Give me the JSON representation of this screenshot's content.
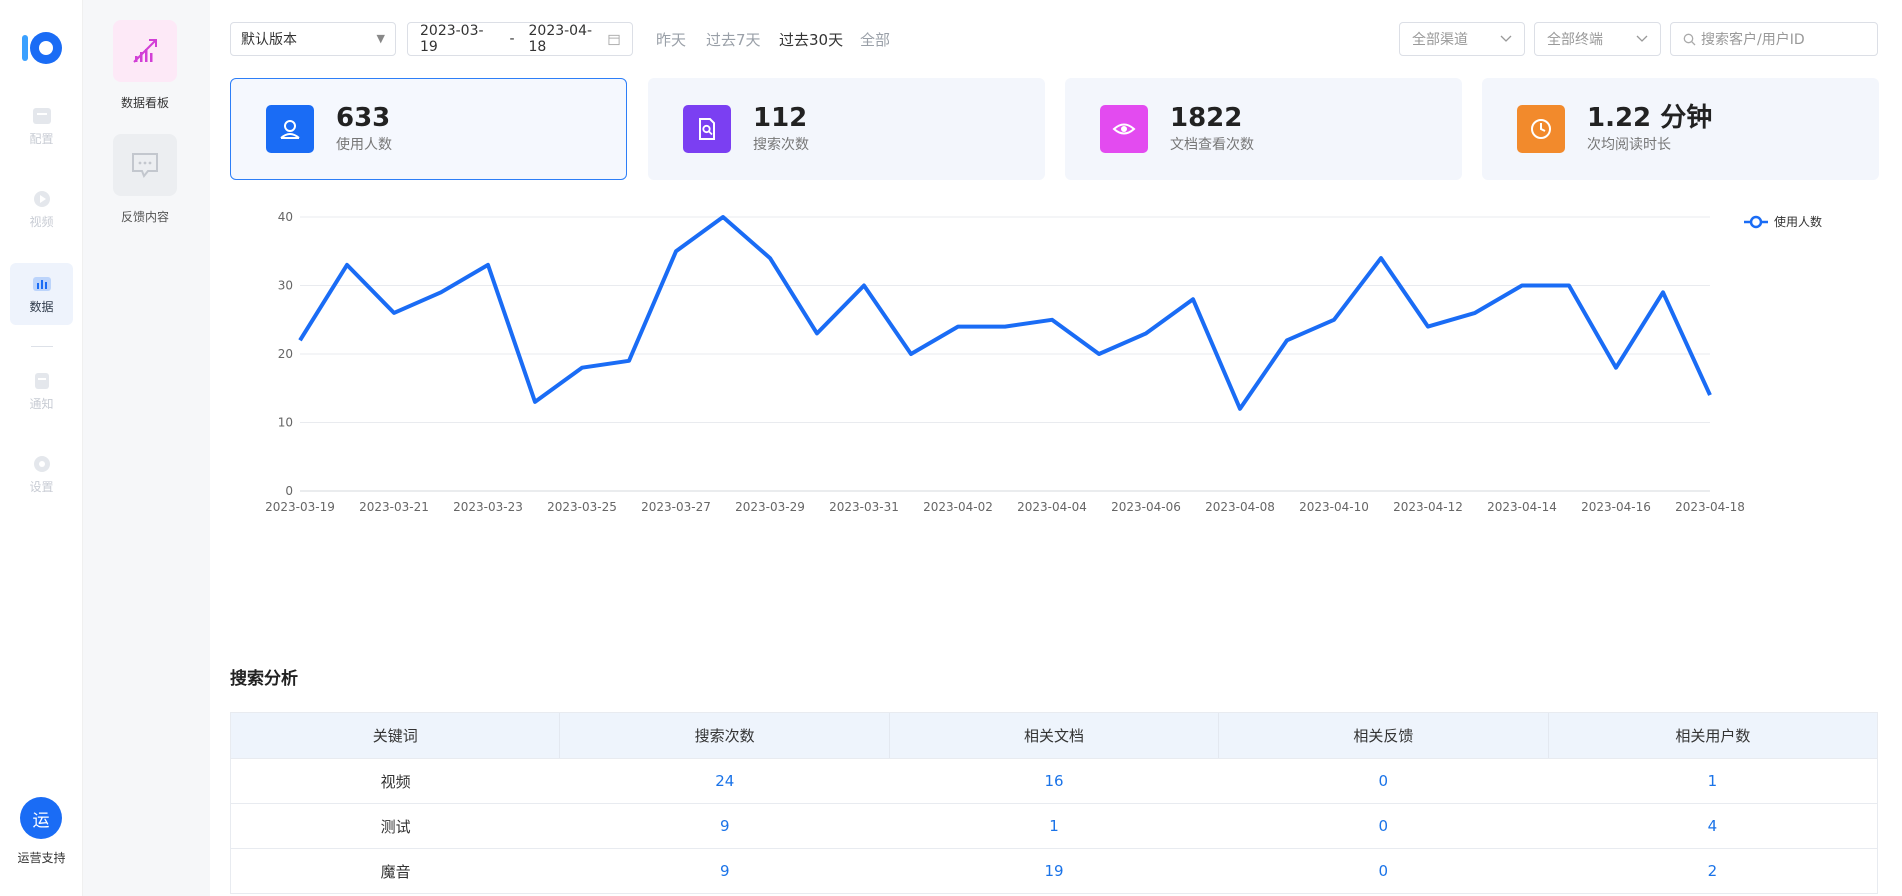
{
  "rail": {
    "items": [
      {
        "label": "配置",
        "icon": "config-icon"
      },
      {
        "label": "视频",
        "icon": "video-icon"
      },
      {
        "label": "数据",
        "icon": "data-icon"
      },
      {
        "label": "通知",
        "icon": "notice-icon"
      },
      {
        "label": "设置",
        "icon": "settings-icon"
      }
    ],
    "support_badge": "运",
    "support_label": "运营支持"
  },
  "subnav": {
    "items": [
      {
        "label": "数据看板",
        "icon": "dashboard-chart-icon"
      },
      {
        "label": "反馈内容",
        "icon": "feedback-icon"
      }
    ]
  },
  "filters": {
    "version": "默认版本",
    "date_start": "2023-03-19",
    "date_sep": "-",
    "date_end": "2023-04-18",
    "quick": [
      "昨天",
      "过去7天",
      "过去30天",
      "全部"
    ],
    "channel": "全部渠道",
    "terminal": "全部终端",
    "search_placeholder": "搜索客户/用户ID"
  },
  "stats": [
    {
      "value": "633",
      "label": "使用人数",
      "icon": "user-icon",
      "color": "#1a6cf5"
    },
    {
      "value": "112",
      "label": "搜索次数",
      "icon": "doc-search-icon",
      "color": "#7b3ff2"
    },
    {
      "value": "1822",
      "label": "文档查看次数",
      "icon": "eye-icon",
      "color": "#e34bf0"
    },
    {
      "value": "1.22 分钟",
      "label": "次均阅读时长",
      "icon": "clock-icon",
      "color": "#f28a2c"
    }
  ],
  "chart_data": {
    "type": "line",
    "x": [
      "2023-03-19",
      "2023-03-20",
      "2023-03-21",
      "2023-03-22",
      "2023-03-23",
      "2023-03-24",
      "2023-03-25",
      "2023-03-26",
      "2023-03-27",
      "2023-03-28",
      "2023-03-29",
      "2023-03-30",
      "2023-03-31",
      "2023-04-01",
      "2023-04-02",
      "2023-04-03",
      "2023-04-04",
      "2023-04-05",
      "2023-04-06",
      "2023-04-07",
      "2023-04-08",
      "2023-04-09",
      "2023-04-10",
      "2023-04-11",
      "2023-04-12",
      "2023-04-13",
      "2023-04-14",
      "2023-04-15",
      "2023-04-16",
      "2023-04-17",
      "2023-04-18"
    ],
    "x_tick_labels": [
      "2023-03-19",
      "2023-03-21",
      "2023-03-23",
      "2023-03-25",
      "2023-03-27",
      "2023-03-29",
      "2023-03-31",
      "2023-04-02",
      "2023-04-04",
      "2023-04-06",
      "2023-04-08",
      "2023-04-10",
      "2023-04-12",
      "2023-04-14",
      "2023-04-16",
      "2023-04-18"
    ],
    "series": [
      {
        "name": "使用人数",
        "values": [
          22,
          33,
          26,
          29,
          33,
          13,
          18,
          19,
          35,
          40,
          34,
          23,
          30,
          20,
          24,
          24,
          25,
          20,
          23,
          28,
          12,
          22,
          25,
          34,
          24,
          26,
          30,
          30,
          18,
          29,
          14
        ]
      }
    ],
    "ylim": [
      0,
      40
    ],
    "y_ticks": [
      0,
      10,
      20,
      30,
      40
    ],
    "legend_position": "top-right",
    "grid": true,
    "color": "#1a6cf5"
  },
  "search_analysis": {
    "title": "搜索分析",
    "columns": [
      "关键词",
      "搜索次数",
      "相关文档",
      "相关反馈",
      "相关用户数"
    ],
    "rows": [
      [
        "视频",
        "24",
        "16",
        "0",
        "1"
      ],
      [
        "测试",
        "9",
        "1",
        "0",
        "4"
      ],
      [
        "魔音",
        "9",
        "19",
        "0",
        "2"
      ]
    ]
  }
}
